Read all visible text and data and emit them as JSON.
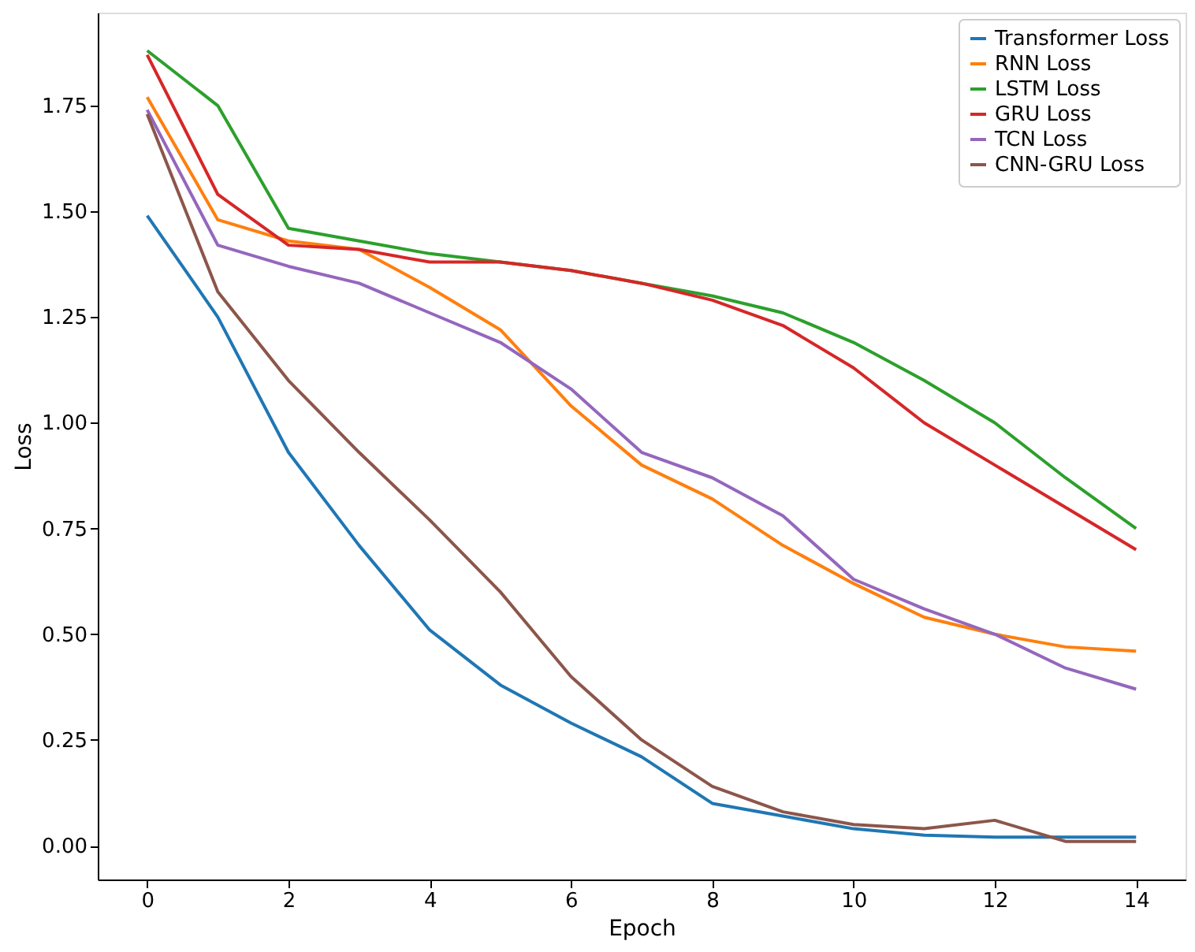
{
  "chart_data": {
    "type": "line",
    "xlabel": "Epoch",
    "ylabel": "Loss",
    "x": [
      0,
      1,
      2,
      3,
      4,
      5,
      6,
      7,
      8,
      9,
      10,
      11,
      12,
      13,
      14
    ],
    "xlim": [
      -0.7,
      14.7
    ],
    "xticks": [
      0,
      2,
      4,
      6,
      8,
      10,
      12,
      14
    ],
    "ylim": [
      -0.08,
      1.97
    ],
    "yticks": [
      {
        "value": 0,
        "label": "0.00"
      },
      {
        "value": 0.25,
        "label": "0.25"
      },
      {
        "value": 0.5,
        "label": "0.50"
      },
      {
        "value": 0.75,
        "label": "0.75"
      },
      {
        "value": 1,
        "label": "1.00"
      },
      {
        "value": 1.25,
        "label": "1.25"
      },
      {
        "value": 1.5,
        "label": "1.50"
      },
      {
        "value": 1.75,
        "label": "1.75"
      }
    ],
    "grid": false,
    "legend": "top right",
    "line_style": "solid",
    "marker": "none",
    "series": [
      {
        "name": "Transformer Loss",
        "color": "#1f77b4",
        "values": [
          1.49,
          1.25,
          0.93,
          0.71,
          0.51,
          0.38,
          0.29,
          0.21,
          0.1,
          0.07,
          0.04,
          0.025,
          0.02,
          0.02,
          0.02
        ]
      },
      {
        "name": "RNN Loss",
        "color": "#ff7f0e",
        "values": [
          1.77,
          1.48,
          1.43,
          1.41,
          1.32,
          1.22,
          1.04,
          0.9,
          0.82,
          0.71,
          0.62,
          0.54,
          0.5,
          0.47,
          0.46
        ]
      },
      {
        "name": "LSTM Loss",
        "color": "#2ca02c",
        "values": [
          1.88,
          1.75,
          1.46,
          1.43,
          1.4,
          1.38,
          1.36,
          1.33,
          1.3,
          1.26,
          1.19,
          1.1,
          1.0,
          0.87,
          0.75
        ]
      },
      {
        "name": "GRU Loss",
        "color": "#d62728",
        "values": [
          1.87,
          1.54,
          1.42,
          1.41,
          1.38,
          1.38,
          1.36,
          1.33,
          1.29,
          1.23,
          1.13,
          1.0,
          0.9,
          0.8,
          0.7
        ]
      },
      {
        "name": "TCN Loss",
        "color": "#9467bd",
        "values": [
          1.74,
          1.42,
          1.37,
          1.33,
          1.26,
          1.19,
          1.08,
          0.93,
          0.87,
          0.78,
          0.63,
          0.56,
          0.5,
          0.42,
          0.37
        ]
      },
      {
        "name": "CNN-GRU Loss",
        "color": "#8c564b",
        "values": [
          1.73,
          1.31,
          1.1,
          0.93,
          0.77,
          0.6,
          0.4,
          0.25,
          0.14,
          0.08,
          0.05,
          0.04,
          0.06,
          0.01,
          0.01
        ]
      }
    ]
  }
}
